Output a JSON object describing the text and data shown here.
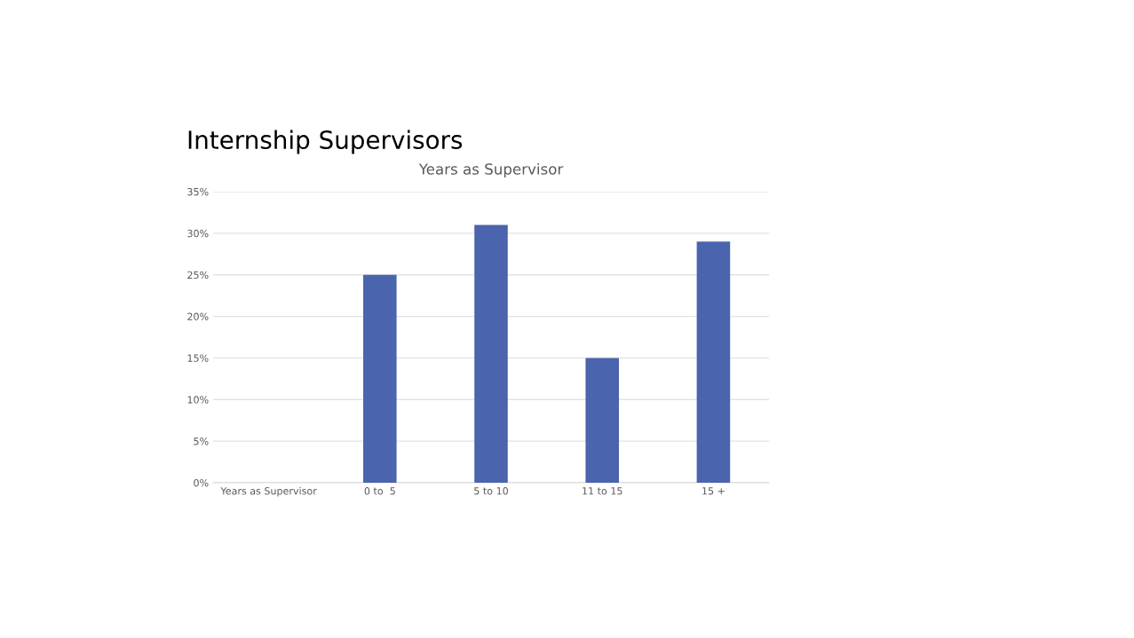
{
  "chart_data": {
    "type": "bar",
    "title": "Internship Supervisors",
    "subtitle": "Years as Supervisor",
    "categories": [
      "Years as Supervisor",
      "0 to  5",
      "5 to 10",
      "11 to 15",
      "15 +"
    ],
    "values": [
      null,
      25,
      31,
      15,
      29
    ],
    "color": "#4a64ae",
    "ylim": [
      0,
      35
    ],
    "yticks": [
      {
        "value": 0,
        "label": "0%"
      },
      {
        "value": 5,
        "label": "5%"
      },
      {
        "value": 10,
        "label": "10%"
      },
      {
        "value": 15,
        "label": "15%"
      },
      {
        "value": 20,
        "label": "20%"
      },
      {
        "value": 25,
        "label": "25%"
      },
      {
        "value": 30,
        "label": "30%"
      },
      {
        "value": 35,
        "label": "35%"
      }
    ],
    "grid": "y",
    "legend": false
  }
}
